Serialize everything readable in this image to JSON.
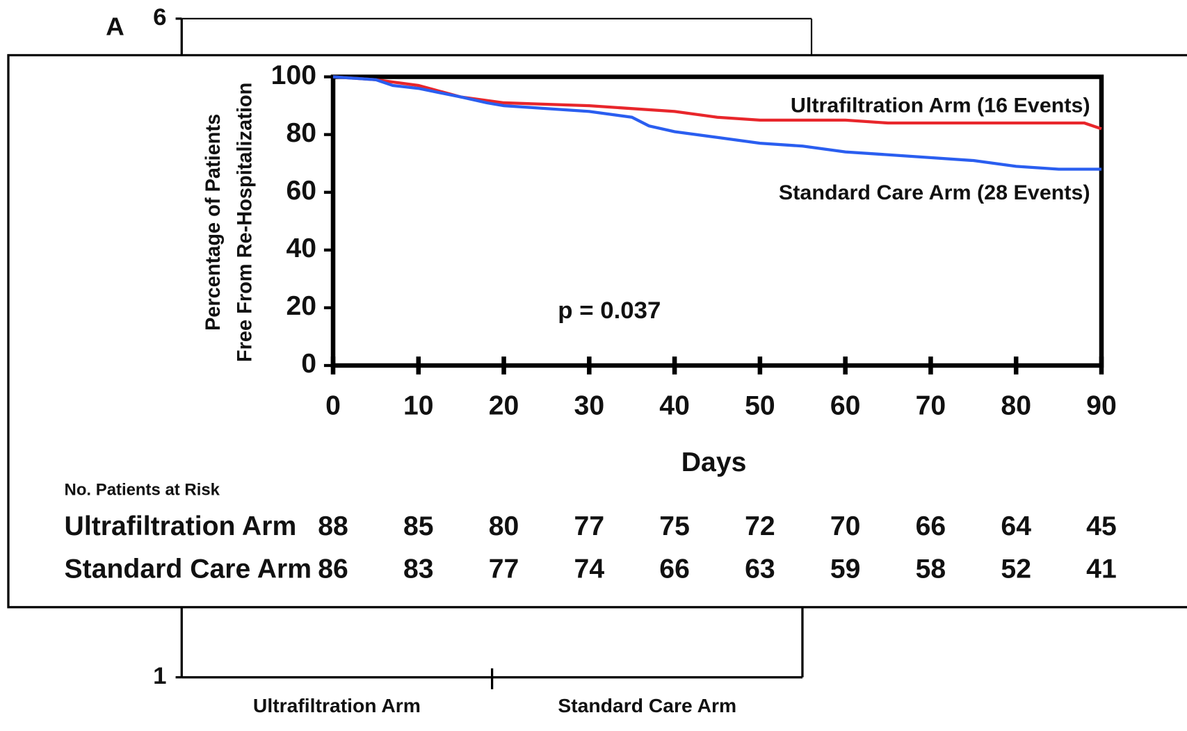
{
  "chart_data": [
    {
      "type": "bar",
      "panel_label": "A",
      "categories": [
        "Ultrafiltration Arm",
        "Standard Care Arm"
      ],
      "ylim": [
        1,
        6
      ],
      "yticks": [
        1,
        2,
        6
      ]
    },
    {
      "type": "line",
      "x_label": "Days",
      "y_label": [
        "Percentage of Patients",
        "Free From Re-Hospitalization"
      ],
      "annotation": "p = 0.037",
      "xlim": [
        0,
        90
      ],
      "ylim": [
        0,
        100
      ],
      "xticks": [
        0,
        10,
        20,
        30,
        40,
        50,
        60,
        70,
        80,
        90
      ],
      "yticks": [
        0,
        20,
        40,
        60,
        80,
        100
      ],
      "series": [
        {
          "name": "Ultrafiltration Arm (16 Events)",
          "color": "#e8262b",
          "x": [
            0,
            5,
            10,
            15,
            20,
            30,
            40,
            45,
            50,
            60,
            65,
            80,
            88,
            90
          ],
          "values": [
            100,
            99,
            97,
            93,
            91,
            90,
            88,
            86,
            85,
            85,
            84,
            84,
            84,
            82
          ]
        },
        {
          "name": "Standard Care Arm (28 Events)",
          "color": "#2a5ef0",
          "x": [
            0,
            5,
            7,
            10,
            15,
            18,
            20,
            25,
            30,
            35,
            37,
            40,
            45,
            50,
            55,
            60,
            70,
            75,
            80,
            85,
            90
          ],
          "values": [
            100,
            99,
            97,
            96,
            93,
            91,
            90,
            89,
            88,
            86,
            83,
            81,
            79,
            77,
            76,
            74,
            72,
            71,
            69,
            68,
            68
          ]
        }
      ],
      "risk_table": {
        "title": "No. Patients at Risk",
        "rows": [
          {
            "name": "Ultrafiltration Arm",
            "values": [
              88,
              85,
              80,
              77,
              75,
              72,
              70,
              66,
              64,
              45
            ]
          },
          {
            "name": "Standard Care Arm",
            "values": [
              86,
              83,
              77,
              74,
              66,
              63,
              59,
              58,
              52,
              41
            ]
          }
        ]
      }
    }
  ]
}
